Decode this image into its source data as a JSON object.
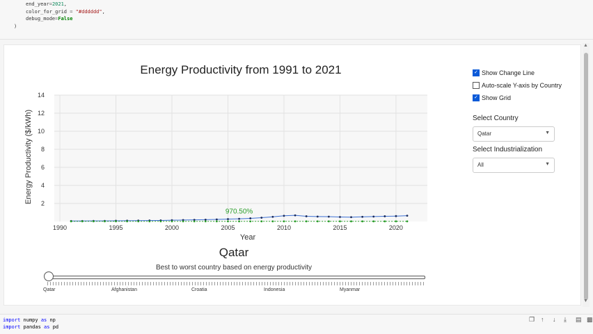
{
  "code_top": {
    "line1": {
      "name": "end_year",
      "op": "=",
      "value": "2021",
      "trail": ","
    },
    "line2": {
      "name": "color_for_grid",
      "op": " = ",
      "value": "\"#dddddd\"",
      "trail": ","
    },
    "line3": {
      "name": "debug_mode",
      "op": "=",
      "value": "False"
    },
    "line4": ")"
  },
  "chart": {
    "title": "Energy Productivity from 1991 to 2021",
    "ylabel": "Energy Productivity ($/kWh)",
    "xlabel": "Year",
    "annotation": "970.50%"
  },
  "chart_data": {
    "type": "line",
    "title": "Energy Productivity from 1991 to 2021",
    "xlabel": "Year",
    "ylabel": "Energy Productivity ($/kWh)",
    "xlim": [
      1989.5,
      2022.8
    ],
    "ylim": [
      0,
      14
    ],
    "x_ticks": [
      1990,
      1995,
      2000,
      2005,
      2010,
      2015,
      2020
    ],
    "y_ticks": [
      2,
      4,
      6,
      8,
      10,
      12,
      14
    ],
    "grid": true,
    "x": [
      1991,
      1992,
      1993,
      1994,
      1995,
      1996,
      1997,
      1998,
      1999,
      2000,
      2001,
      2002,
      2003,
      2004,
      2005,
      2006,
      2007,
      2008,
      2009,
      2010,
      2011,
      2012,
      2013,
      2014,
      2015,
      2016,
      2017,
      2018,
      2019,
      2020,
      2021
    ],
    "series": [
      {
        "values": [
          0.06,
          0.06,
          0.07,
          0.07,
          0.08,
          0.09,
          0.1,
          0.11,
          0.12,
          0.14,
          0.16,
          0.18,
          0.2,
          0.23,
          0.27,
          0.3,
          0.35,
          0.42,
          0.52,
          0.63,
          0.68,
          0.58,
          0.55,
          0.54,
          0.5,
          0.48,
          0.52,
          0.55,
          0.58,
          0.6,
          0.64
        ],
        "color": "#3b6fd4"
      },
      {
        "values": [
          0.02,
          0.02,
          0.02,
          0.02,
          0.02,
          0.02,
          0.02,
          0.02,
          0.02,
          0.02,
          0.02,
          0.02,
          0.02,
          0.02,
          0.02,
          0.02,
          0.02,
          0.02,
          0.02,
          0.02,
          0.02,
          0.02,
          0.02,
          0.02,
          0.02,
          0.02,
          0.02,
          0.02,
          0.02,
          0.02,
          0.02
        ],
        "color": "#2a9d2a"
      }
    ],
    "annotations": [
      {
        "text": "970.50%",
        "x": 2006,
        "y": 0.9,
        "color": "#2a9d2a"
      }
    ]
  },
  "controls": {
    "show_change_line": {
      "label": "Show Change Line",
      "checked": true
    },
    "auto_scale": {
      "label": "Auto-scale Y-axis by Country",
      "checked": false
    },
    "show_grid": {
      "label": "Show Grid",
      "checked": true
    },
    "select_country": {
      "label": "Select Country",
      "value": "Qatar"
    },
    "select_industrialization": {
      "label": "Select Industrialization",
      "value": "All"
    }
  },
  "country": {
    "title": "Qatar",
    "subtitle": "Best to worst country based on energy productivity"
  },
  "slider": {
    "labels": [
      "Qatar",
      "Afghanistan",
      "Croatia",
      "Indonesia",
      "Myanmar"
    ],
    "value_fraction": 0.0
  },
  "code_bottom": {
    "line1": {
      "kw": "import",
      "mod": "numpy",
      "as": "as",
      "alias": "np"
    },
    "line2": {
      "kw": "import",
      "mod": "pandas",
      "as": "as",
      "alias": "pd"
    }
  },
  "toolbar": {
    "icons": [
      "copy-icon",
      "arrow-up-icon",
      "arrow-down-icon",
      "download-icon",
      "split-icon",
      "delete-icon"
    ]
  }
}
